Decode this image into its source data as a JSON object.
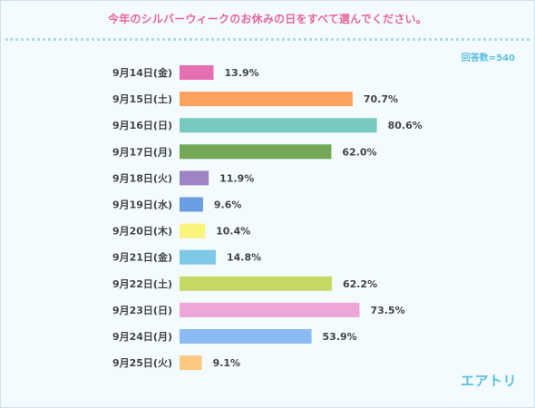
{
  "header": {
    "title": "今年のシルバーウィークのお休みの日をすべて選んでください。",
    "respondents": "回答数=540"
  },
  "footer": {
    "brand": "エアトリ"
  },
  "chart_data": {
    "type": "bar",
    "orientation": "horizontal",
    "title": "今年のシルバーウィークのお休みの日をすべて選んでください。",
    "categories": [
      "9月14日(金)",
      "9月15日(土)",
      "9月16日(日)",
      "9月17日(月)",
      "9月18日(火)",
      "9月19日(水)",
      "9月20日(木)",
      "9月21日(金)",
      "9月22日(土)",
      "9月23日(日)",
      "9月24日(月)",
      "9月25日(火)"
    ],
    "values": [
      13.9,
      70.7,
      80.6,
      62.0,
      11.9,
      9.6,
      10.4,
      14.8,
      62.2,
      73.5,
      53.9,
      9.1
    ],
    "value_labels": [
      "13.9%",
      "70.7%",
      "80.6%",
      "62.0%",
      "11.9%",
      "9.6%",
      "10.4%",
      "14.8%",
      "62.2%",
      "73.5%",
      "53.9%",
      "9.1%"
    ],
    "colors": [
      "#e66fb2",
      "#fba25f",
      "#77c9c0",
      "#74a857",
      "#a083c4",
      "#6a9ee0",
      "#fbf47c",
      "#7ecae6",
      "#c4da64",
      "#eda6d6",
      "#8cbaf2",
      "#fbca80"
    ],
    "xlim": [
      0,
      100
    ],
    "grid": false,
    "legend": "none"
  }
}
